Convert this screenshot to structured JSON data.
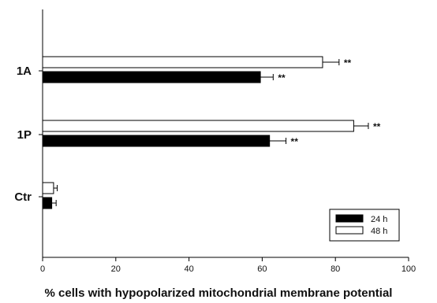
{
  "chart_data": {
    "type": "bar",
    "orientation": "horizontal",
    "categories": [
      "Ctr",
      "1P",
      "1A"
    ],
    "series": [
      {
        "name": "24 h",
        "color": "#000000",
        "values": [
          2.5,
          62,
          59.5
        ],
        "errors": [
          1.2,
          4.5,
          3.5
        ],
        "significance": [
          "",
          "**",
          "**"
        ]
      },
      {
        "name": "48 h",
        "color": "#ffffff",
        "values": [
          3,
          85,
          76.5
        ],
        "errors": [
          1.0,
          4.0,
          4.5
        ],
        "significance": [
          "",
          "**",
          "**"
        ]
      }
    ],
    "title": "",
    "xlabel": "% cells with hypopolarized mitochondrial membrane potential",
    "ylabel": "",
    "xlim": [
      0,
      100
    ],
    "xticks": [
      0,
      20,
      40,
      60,
      80,
      100
    ],
    "grid": false,
    "legend_position": "bottom-right"
  }
}
